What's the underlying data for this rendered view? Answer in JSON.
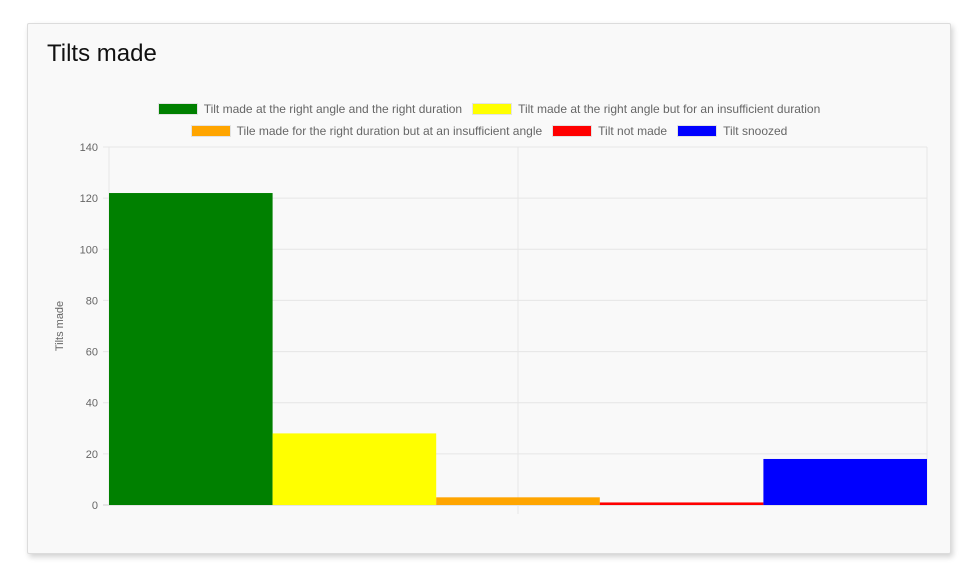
{
  "title": "Tilts made",
  "chart_data": {
    "type": "bar",
    "title": "Tilts made",
    "xlabel": "",
    "ylabel": "Tilts made",
    "ylim": [
      0,
      140
    ],
    "y_ticks": [
      0,
      20,
      40,
      60,
      80,
      100,
      120,
      140
    ],
    "grid": true,
    "legend_position": "top",
    "series": [
      {
        "name": "Tilt made at the right angle and the right duration",
        "value": 122,
        "color": "#008000"
      },
      {
        "name": "Tilt made at the right angle but for an insufficient duration",
        "value": 28,
        "color": "#ffff00"
      },
      {
        "name": "Tile made for the right duration but at an insufficient angle",
        "value": 3,
        "color": "#ffa500"
      },
      {
        "name": "Tilt not made",
        "value": 1,
        "color": "#ff0000"
      },
      {
        "name": "Tilt snoozed",
        "value": 18,
        "color": "#0000ff"
      }
    ]
  }
}
